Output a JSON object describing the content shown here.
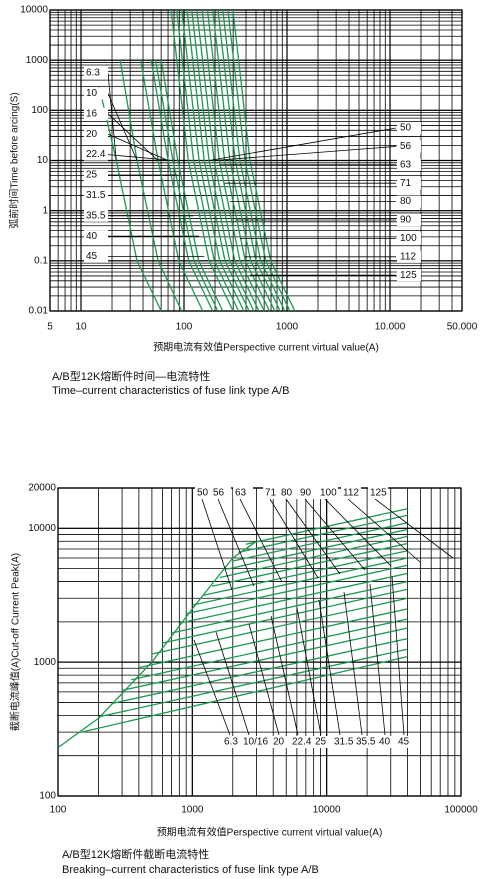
{
  "chart_data": [
    {
      "type": "line",
      "log_scale": true,
      "grid": true,
      "color": "#1a9a50",
      "x_label": "预期电流有效值Perspective current virtual value(A)",
      "y_label": "弧前时间Time before arcing(S)",
      "caption_zh": "A/B型12K熔断件时间—电流特性",
      "caption_en": "Time–current characteristics of fuse link type A/B",
      "xlim": [
        5,
        50000
      ],
      "ylim": [
        0.01,
        10000
      ],
      "xticks": [
        5,
        10,
        100,
        1000,
        {
          "value": 10000,
          "label": "10.000"
        },
        {
          "value": 50000,
          "label": "50.000"
        }
      ],
      "yticks": [
        0.01,
        0.1,
        1,
        10,
        100,
        1000,
        10000
      ],
      "series": [
        {
          "name": "6.3",
          "x": [
            15,
            22,
            35,
            60
          ],
          "values": [
            300,
            10,
            0.1,
            0.01
          ]
        },
        {
          "name": "10",
          "x": [
            24,
            35,
            56,
            95
          ],
          "values": [
            1000,
            10,
            0.1,
            0.01
          ]
        },
        {
          "name": "16",
          "x": [
            38,
            56,
            89,
            152
          ],
          "values": [
            1000,
            10,
            0.1,
            0.01
          ]
        },
        {
          "name": "20",
          "x": [
            48,
            70,
            111,
            190
          ],
          "values": [
            1000,
            10,
            0.1,
            0.01
          ]
        },
        {
          "name": "22.4",
          "x": [
            53,
            78,
            125,
            213
          ],
          "values": [
            1000,
            10,
            0.1,
            0.01
          ]
        },
        {
          "name": "25",
          "x": [
            60,
            87,
            139,
            238
          ],
          "values": [
            1000,
            10,
            0.1,
            0.01
          ]
        },
        {
          "name": "31.5",
          "x": [
            75,
            110,
            175,
            300
          ],
          "values": [
            10000,
            10,
            0.1,
            0.01
          ]
        },
        {
          "name": "35.5",
          "x": [
            85,
            124,
            197,
            338
          ],
          "values": [
            10000,
            10,
            0.1,
            0.01
          ]
        },
        {
          "name": "40",
          "x": [
            95,
            140,
            222,
            381
          ],
          "values": [
            10000,
            10,
            0.1,
            0.01
          ]
        },
        {
          "name": "45",
          "x": [
            107,
            157,
            250,
            429
          ],
          "values": [
            10000,
            10,
            0.1,
            0.01
          ]
        },
        {
          "name": "50",
          "x": [
            119,
            175,
            278,
            476
          ],
          "values": [
            10000,
            10,
            0.1,
            0.01
          ]
        },
        {
          "name": "56",
          "x": [
            133,
            196,
            311,
            533
          ],
          "values": [
            10000,
            10,
            0.1,
            0.01
          ]
        },
        {
          "name": "63",
          "x": [
            150,
            220,
            350,
            600
          ],
          "values": [
            10000,
            10,
            0.1,
            0.01
          ]
        },
        {
          "name": "71",
          "x": [
            169,
            248,
            394,
            676
          ],
          "values": [
            10000,
            10,
            0.1,
            0.01
          ]
        },
        {
          "name": "80",
          "x": [
            190,
            279,
            444,
            762
          ],
          "values": [
            10000,
            10,
            0.1,
            0.01
          ]
        },
        {
          "name": "90",
          "x": [
            214,
            314,
            500,
            857
          ],
          "values": [
            10000,
            10,
            0.1,
            0.01
          ]
        },
        {
          "name": "100",
          "x": [
            238,
            349,
            556,
            952
          ],
          "values": [
            10000,
            10,
            0.1,
            0.01
          ]
        },
        {
          "name": "112",
          "x": [
            267,
            391,
            622,
            1067
          ],
          "values": [
            10000,
            10,
            0.1,
            0.01
          ]
        },
        {
          "name": "125",
          "x": [
            298,
            437,
            694,
            1190
          ],
          "values": [
            10000,
            10,
            0.1,
            0.01
          ]
        }
      ]
    },
    {
      "type": "line",
      "log_scale": true,
      "grid": true,
      "color": "#1a9a50",
      "x_label": "预期电流有效值Perspective current virtual value(A)",
      "y_label": "截断电流峰值(A)Cut-off Current Peak(A)",
      "caption_zh": "A/B型12K熔断件截断电流特性",
      "caption_en": "Breaking–current characteristics of fuse link type A/B",
      "xlim": [
        100,
        100000
      ],
      "ylim": [
        100,
        20000
      ],
      "xticks": [
        100,
        1000,
        10000,
        100000
      ],
      "yticks": [
        100,
        1000,
        10000,
        20000
      ],
      "top_labels": [
        "50",
        "56",
        "63",
        "71",
        "80",
        "90",
        "100",
        "112",
        "125"
      ],
      "bottom_labels": [
        "6.3",
        "10/16",
        "20",
        "22.4",
        "25",
        "31.5",
        "35.5",
        "40",
        "45"
      ],
      "series": [
        {
          "x": [
            100,
            200,
            500,
            1000,
            2000,
            3000
          ],
          "values": [
            230,
            380,
            1000,
            2500,
            6000,
            8000
          ]
        },
        {
          "x": [
            150,
            40000
          ],
          "values": [
            300,
            1100
          ]
        },
        {
          "x": [
            200,
            40000
          ],
          "values": [
            390,
            1250
          ]
        },
        {
          "x": [
            250,
            40000
          ],
          "values": [
            490,
            1500
          ]
        },
        {
          "x": [
            300,
            40000
          ],
          "values": [
            615,
            1800
          ]
        },
        {
          "x": [
            350,
            40000
          ],
          "values": [
            740,
            2100
          ]
        },
        {
          "x": [
            400,
            40000
          ],
          "values": [
            910,
            2500
          ]
        },
        {
          "x": [
            500,
            40000
          ],
          "values": [
            1150,
            3000
          ]
        },
        {
          "x": [
            600,
            40000
          ],
          "values": [
            1390,
            3500
          ]
        },
        {
          "x": [
            700,
            40000
          ],
          "values": [
            1650,
            4000
          ]
        },
        {
          "x": [
            800,
            40000
          ],
          "values": [
            1950,
            4600
          ]
        },
        {
          "x": [
            900,
            40000
          ],
          "values": [
            2300,
            5300
          ]
        },
        {
          "x": [
            1000,
            40000
          ],
          "values": [
            2670,
            6000
          ]
        },
        {
          "x": [
            1200,
            40000
          ],
          "values": [
            3150,
            6800
          ]
        },
        {
          "x": [
            1400,
            40000
          ],
          "values": [
            3690,
            7700
          ]
        },
        {
          "x": [
            1600,
            40000
          ],
          "values": [
            4290,
            8700
          ]
        },
        {
          "x": [
            1800,
            40000
          ],
          "values": [
            4950,
            9800
          ]
        },
        {
          "x": [
            2000,
            40000
          ],
          "values": [
            5700,
            11000
          ]
        },
        {
          "x": [
            2200,
            40000
          ],
          "values": [
            6600,
            12500
          ]
        },
        {
          "x": [
            2500,
            40000
          ],
          "values": [
            7600,
            14000
          ]
        }
      ]
    }
  ]
}
